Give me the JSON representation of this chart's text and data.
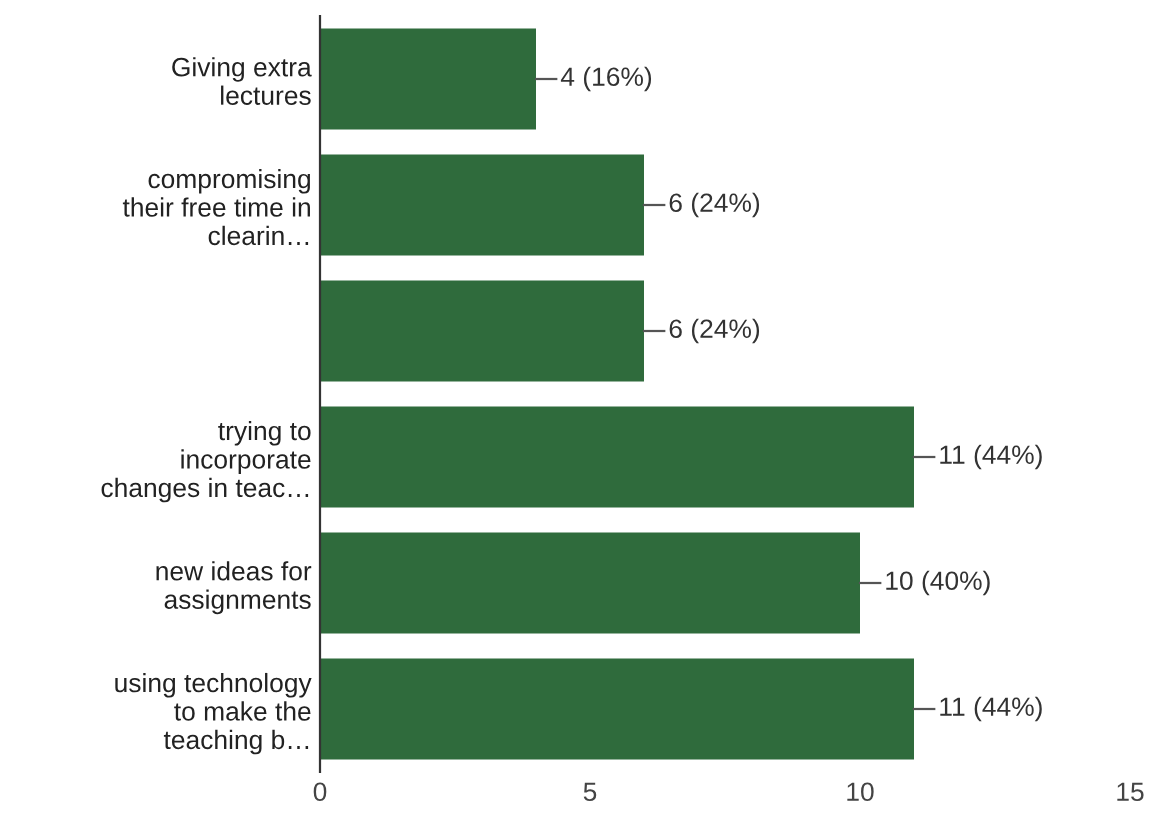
{
  "chart_data": {
    "type": "bar",
    "orientation": "horizontal",
    "categories": [
      "Giving extra\nlectures",
      "compromising\ntheir free time in\nclearin…",
      null,
      "trying to\nincorporate\nchanges in teac…",
      "new ideas for\nassignments",
      "using technology\nto make the\nteaching b…"
    ],
    "values": [
      4,
      6,
      6,
      11,
      10,
      11
    ],
    "value_labels": [
      "4 (16%)",
      "6 (24%)",
      "6 (24%)",
      "11 (44%)",
      "10 (40%)",
      "11 (44%)"
    ],
    "color": "#2f6b3c",
    "xlim": [
      0,
      15
    ],
    "xticks": [
      0,
      5,
      10,
      15
    ],
    "grid": false
  }
}
